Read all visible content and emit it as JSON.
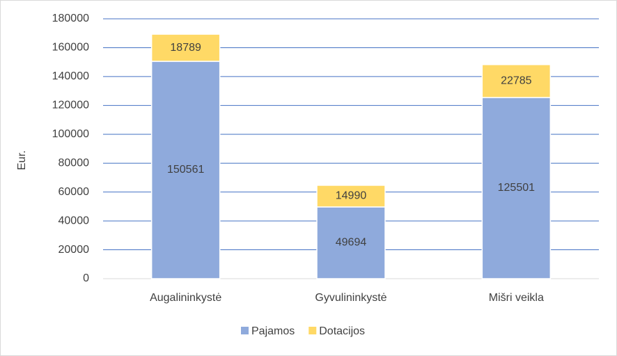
{
  "chart_data": {
    "type": "stacked_bar",
    "y_label": "Eur.",
    "categories": [
      "Augalininkystė",
      "Gyvulininkystė",
      "Mišri veikla"
    ],
    "series": [
      {
        "name": "Pajamos",
        "color": "#8faadc",
        "values": [
          150561,
          49694,
          125501
        ]
      },
      {
        "name": "Dotacijos",
        "color": "#ffd966",
        "values": [
          18789,
          14990,
          22785
        ]
      }
    ],
    "ylim": [
      0,
      180000
    ],
    "yticks": [
      0,
      20000,
      40000,
      60000,
      80000,
      100000,
      120000,
      140000,
      160000,
      180000
    ],
    "grid": true,
    "legend": "bottom"
  }
}
